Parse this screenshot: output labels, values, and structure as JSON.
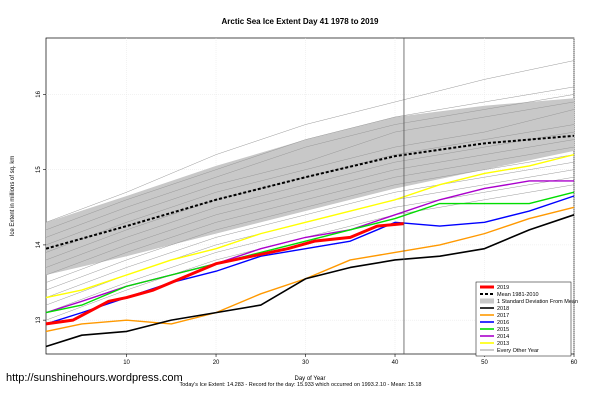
{
  "chart_data": {
    "type": "line",
    "title": "Arctic Sea Ice Extent Day 41 1978 to 2019",
    "xlabel": "Day of Year",
    "ylabel": "Ice Extent in millions of sq. km",
    "xlim": [
      1,
      60
    ],
    "ylim": [
      12.55,
      16.75
    ],
    "x_ticks": [
      10,
      20,
      30,
      40,
      50,
      60
    ],
    "y_ticks": [
      13,
      14,
      15,
      16
    ],
    "grid": true,
    "current_day_marker": 41,
    "legend_position": "bottom-right",
    "band": {
      "name": "1 Standard Deviation From Mean",
      "color": "#c8c8c8",
      "x": [
        1,
        10,
        20,
        30,
        40,
        50,
        60
      ],
      "lower": [
        13.6,
        13.85,
        14.15,
        14.45,
        14.75,
        15.0,
        15.25
      ],
      "upper": [
        14.3,
        14.65,
        15.05,
        15.4,
        15.7,
        15.85,
        15.95
      ]
    },
    "background_years": {
      "name": "Every Other Year",
      "color": "#999999",
      "x": [
        1,
        10,
        20,
        30,
        40,
        50,
        60
      ],
      "lines": [
        [
          14.3,
          14.7,
          15.2,
          15.6,
          15.9,
          16.2,
          16.45
        ],
        [
          14.2,
          14.6,
          15.0,
          15.4,
          15.7,
          15.9,
          16.1
        ],
        [
          14.1,
          14.5,
          14.9,
          15.3,
          15.6,
          15.8,
          16.0
        ],
        [
          14.0,
          14.4,
          14.8,
          15.1,
          15.5,
          15.7,
          15.9
        ],
        [
          13.9,
          14.3,
          14.7,
          15.0,
          15.3,
          15.5,
          15.8
        ],
        [
          13.8,
          14.2,
          14.6,
          14.9,
          15.2,
          15.4,
          15.6
        ],
        [
          13.7,
          14.1,
          14.5,
          14.8,
          15.1,
          15.3,
          15.5
        ],
        [
          13.6,
          14.0,
          14.4,
          14.7,
          15.0,
          15.2,
          15.4
        ],
        [
          13.5,
          13.9,
          14.3,
          14.6,
          14.9,
          15.1,
          15.3
        ],
        [
          13.4,
          13.8,
          14.2,
          14.5,
          14.8,
          15.0,
          15.2
        ],
        [
          13.3,
          13.7,
          14.1,
          14.4,
          14.7,
          14.9,
          15.1
        ],
        [
          13.2,
          13.6,
          14.0,
          14.3,
          14.6,
          14.8,
          15.0
        ],
        [
          13.1,
          13.5,
          13.9,
          14.2,
          14.5,
          14.7,
          14.9
        ],
        [
          13.0,
          13.4,
          13.8,
          14.1,
          14.4,
          14.6,
          14.8
        ]
      ]
    },
    "series": [
      {
        "name": "2019",
        "color": "#ff0000",
        "width": 3,
        "dash": "",
        "x": [
          1,
          4,
          8,
          10,
          13,
          16,
          20,
          24,
          28,
          31,
          35,
          38,
          41
        ],
        "values": [
          12.95,
          13.0,
          13.25,
          13.3,
          13.4,
          13.55,
          13.75,
          13.85,
          13.95,
          14.05,
          14.1,
          14.25,
          14.283
        ]
      },
      {
        "name": "Mean 1981-2010",
        "color": "#000000",
        "width": 2,
        "dash": "3,2",
        "x": [
          1,
          10,
          20,
          30,
          40,
          50,
          60
        ],
        "values": [
          13.95,
          14.25,
          14.6,
          14.9,
          15.18,
          15.35,
          15.45
        ]
      },
      {
        "name": "2018",
        "color": "#000000",
        "width": 1.6,
        "dash": "",
        "x": [
          1,
          5,
          10,
          15,
          20,
          25,
          30,
          35,
          40,
          45,
          50,
          55,
          60
        ],
        "values": [
          12.65,
          12.8,
          12.85,
          13.0,
          13.1,
          13.2,
          13.55,
          13.7,
          13.8,
          13.85,
          13.95,
          14.2,
          14.4
        ]
      },
      {
        "name": "2017",
        "color": "#ff9900",
        "width": 1.4,
        "dash": "",
        "x": [
          1,
          5,
          10,
          15,
          20,
          25,
          30,
          35,
          40,
          45,
          50,
          55,
          60
        ],
        "values": [
          12.85,
          12.95,
          13.0,
          12.95,
          13.1,
          13.35,
          13.55,
          13.8,
          13.9,
          14.0,
          14.15,
          14.35,
          14.5
        ]
      },
      {
        "name": "2016",
        "color": "#0000ff",
        "width": 1.4,
        "dash": "",
        "x": [
          1,
          5,
          10,
          15,
          20,
          25,
          30,
          35,
          40,
          45,
          50,
          55,
          60
        ],
        "values": [
          12.95,
          13.1,
          13.3,
          13.5,
          13.65,
          13.85,
          13.95,
          14.05,
          14.3,
          14.25,
          14.3,
          14.45,
          14.65
        ]
      },
      {
        "name": "2015",
        "color": "#00dd00",
        "width": 1.4,
        "dash": "",
        "x": [
          1,
          5,
          10,
          15,
          20,
          25,
          30,
          35,
          40,
          45,
          50,
          55,
          60
        ],
        "values": [
          13.1,
          13.2,
          13.45,
          13.6,
          13.75,
          13.9,
          14.05,
          14.2,
          14.35,
          14.55,
          14.55,
          14.55,
          14.7
        ]
      },
      {
        "name": "2014",
        "color": "#aa00cc",
        "width": 1.4,
        "dash": "",
        "x": [
          1,
          5,
          10,
          15,
          20,
          25,
          30,
          35,
          40,
          45,
          50,
          55,
          60
        ],
        "values": [
          13.1,
          13.25,
          13.45,
          13.6,
          13.75,
          13.95,
          14.1,
          14.2,
          14.4,
          14.6,
          14.75,
          14.85,
          14.85
        ]
      },
      {
        "name": "2013",
        "color": "#ffff00",
        "width": 1.4,
        "dash": "",
        "x": [
          1,
          5,
          10,
          15,
          20,
          25,
          30,
          35,
          40,
          45,
          50,
          55,
          60
        ],
        "values": [
          13.3,
          13.4,
          13.6,
          13.8,
          13.95,
          14.15,
          14.3,
          14.45,
          14.6,
          14.8,
          14.95,
          15.05,
          15.2
        ]
      }
    ],
    "legend": [
      {
        "label": "2019",
        "color": "#ff0000",
        "width": 3,
        "dash": "",
        "kind": "line"
      },
      {
        "label": "Mean 1981-2010",
        "color": "#000000",
        "width": 2,
        "dash": "3,2",
        "kind": "line"
      },
      {
        "label": "1 Standard Deviation From Mean",
        "color": "#c8c8c8",
        "width": 5,
        "dash": "",
        "kind": "band"
      },
      {
        "label": "2018",
        "color": "#000000",
        "width": 1.6,
        "dash": "",
        "kind": "line"
      },
      {
        "label": "2017",
        "color": "#ff9900",
        "width": 1.6,
        "dash": "",
        "kind": "line"
      },
      {
        "label": "2016",
        "color": "#0000ff",
        "width": 1.6,
        "dash": "",
        "kind": "line"
      },
      {
        "label": "2015",
        "color": "#00dd00",
        "width": 1.6,
        "dash": "",
        "kind": "line"
      },
      {
        "label": "2014",
        "color": "#aa00cc",
        "width": 1.6,
        "dash": "",
        "kind": "line"
      },
      {
        "label": "2013",
        "color": "#ffff00",
        "width": 1.6,
        "dash": "",
        "kind": "line"
      },
      {
        "label": "Every Other Year",
        "color": "#999999",
        "width": 1,
        "dash": "",
        "kind": "line"
      }
    ]
  },
  "footer_text": "Today's Ice Extent: 14.283  - Record for the day: 15.933 which occurred on 1993.2.10  - Mean: 15.18",
  "watermark": "http://sunshinehours.wordpress.com"
}
